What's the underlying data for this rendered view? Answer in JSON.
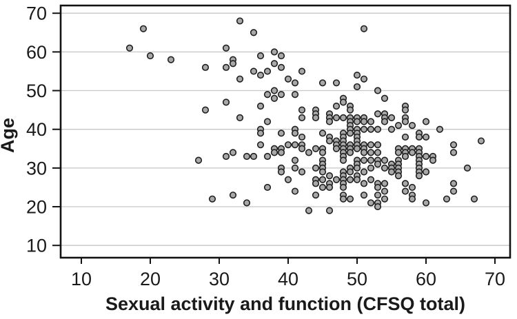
{
  "chart_data": {
    "type": "scatter",
    "title": "",
    "xlabel": "Sexual activity and function (CFSQ total)",
    "ylabel": "Age",
    "x_ticks": [
      10,
      20,
      30,
      40,
      50,
      60,
      70
    ],
    "y_ticks": [
      10,
      20,
      30,
      40,
      50,
      60,
      70
    ],
    "xlim": [
      7,
      72.2
    ],
    "ylim": [
      6.8,
      71.9
    ],
    "grid": "horizontal-only",
    "legend": "none",
    "marker": {
      "shape": "circle",
      "fill": "#a8a8a8",
      "stroke": "#1f1f1f",
      "radius": 4.3,
      "stroke_width": 1.6
    },
    "frame_color": "#121212",
    "gridline_color": "#c6c6c6",
    "points": [
      [
        17,
        61
      ],
      [
        19,
        66
      ],
      [
        20,
        59
      ],
      [
        23,
        58
      ],
      [
        27,
        32
      ],
      [
        28,
        56
      ],
      [
        28,
        45
      ],
      [
        29,
        22
      ],
      [
        31,
        61
      ],
      [
        31,
        56
      ],
      [
        31,
        47
      ],
      [
        31,
        33
      ],
      [
        32,
        58
      ],
      [
        32,
        57
      ],
      [
        32,
        34
      ],
      [
        32,
        23
      ],
      [
        33,
        68
      ],
      [
        33,
        53
      ],
      [
        33,
        43
      ],
      [
        34,
        33
      ],
      [
        34,
        21
      ],
      [
        35,
        65
      ],
      [
        35,
        55
      ],
      [
        35,
        33
      ],
      [
        36,
        59
      ],
      [
        36,
        54
      ],
      [
        36,
        46
      ],
      [
        36,
        40
      ],
      [
        36,
        39
      ],
      [
        36,
        36
      ],
      [
        37,
        55
      ],
      [
        37,
        49
      ],
      [
        37,
        42
      ],
      [
        37,
        33
      ],
      [
        37,
        25
      ],
      [
        38,
        60
      ],
      [
        38,
        57
      ],
      [
        38,
        50
      ],
      [
        38,
        48
      ],
      [
        38,
        35
      ],
      [
        38,
        34
      ],
      [
        39,
        59
      ],
      [
        39,
        56
      ],
      [
        39,
        49
      ],
      [
        39,
        39
      ],
      [
        39,
        35
      ],
      [
        39,
        34
      ],
      [
        39,
        30
      ],
      [
        39,
        29
      ],
      [
        40,
        53
      ],
      [
        40,
        36
      ],
      [
        40,
        27
      ],
      [
        41,
        52
      ],
      [
        41,
        49
      ],
      [
        41,
        40
      ],
      [
        41,
        39
      ],
      [
        41,
        36
      ],
      [
        41,
        32
      ],
      [
        41,
        30
      ],
      [
        41,
        24
      ],
      [
        42,
        55
      ],
      [
        42,
        45
      ],
      [
        42,
        43
      ],
      [
        42,
        38
      ],
      [
        42,
        36
      ],
      [
        42,
        35
      ],
      [
        42,
        29
      ],
      [
        43,
        34
      ],
      [
        43,
        19
      ],
      [
        44,
        45
      ],
      [
        44,
        44
      ],
      [
        44,
        43
      ],
      [
        44,
        35
      ],
      [
        44,
        30
      ],
      [
        44,
        27
      ],
      [
        44,
        26
      ],
      [
        44,
        23
      ],
      [
        45,
        52
      ],
      [
        45,
        39
      ],
      [
        45,
        35
      ],
      [
        45,
        34
      ],
      [
        45,
        32
      ],
      [
        45,
        31
      ],
      [
        45,
        30
      ],
      [
        45,
        29
      ],
      [
        45,
        27
      ],
      [
        45,
        25
      ],
      [
        46,
        44
      ],
      [
        46,
        43
      ],
      [
        46,
        42
      ],
      [
        46,
        38
      ],
      [
        46,
        37
      ],
      [
        46,
        28
      ],
      [
        46,
        26
      ],
      [
        46,
        25
      ],
      [
        46,
        19
      ],
      [
        47,
        52
      ],
      [
        47,
        46
      ],
      [
        47,
        43
      ],
      [
        47,
        37
      ],
      [
        47,
        36
      ],
      [
        47,
        35
      ],
      [
        47,
        27
      ],
      [
        48,
        48
      ],
      [
        48,
        47
      ],
      [
        48,
        43
      ],
      [
        48,
        39
      ],
      [
        48,
        38
      ],
      [
        48,
        37
      ],
      [
        48,
        36
      ],
      [
        48,
        35
      ],
      [
        48,
        34
      ],
      [
        48,
        33
      ],
      [
        48,
        32
      ],
      [
        48,
        29
      ],
      [
        48,
        28
      ],
      [
        48,
        27
      ],
      [
        48,
        26
      ],
      [
        48,
        25
      ],
      [
        48,
        23
      ],
      [
        48,
        22
      ],
      [
        49,
        46
      ],
      [
        49,
        45
      ],
      [
        49,
        43
      ],
      [
        49,
        42
      ],
      [
        49,
        41
      ],
      [
        49,
        40
      ],
      [
        49,
        39
      ],
      [
        49,
        36
      ],
      [
        49,
        35
      ],
      [
        49,
        34
      ],
      [
        49,
        30
      ],
      [
        49,
        29
      ],
      [
        49,
        27
      ],
      [
        49,
        22
      ],
      [
        50,
        54
      ],
      [
        50,
        51
      ],
      [
        50,
        43
      ],
      [
        50,
        42
      ],
      [
        50,
        40
      ],
      [
        50,
        39
      ],
      [
        50,
        38
      ],
      [
        50,
        37
      ],
      [
        50,
        36
      ],
      [
        50,
        35
      ],
      [
        50,
        32
      ],
      [
        50,
        31
      ],
      [
        50,
        30
      ],
      [
        50,
        28
      ],
      [
        50,
        27
      ],
      [
        51,
        66
      ],
      [
        51,
        53
      ],
      [
        51,
        43
      ],
      [
        51,
        42
      ],
      [
        51,
        40
      ],
      [
        51,
        36
      ],
      [
        51,
        35
      ],
      [
        51,
        34
      ],
      [
        51,
        32
      ],
      [
        51,
        29
      ],
      [
        51,
        26
      ],
      [
        51,
        23
      ],
      [
        52,
        42
      ],
      [
        52,
        40
      ],
      [
        52,
        36
      ],
      [
        52,
        34
      ],
      [
        52,
        32
      ],
      [
        52,
        30
      ],
      [
        52,
        27
      ],
      [
        52,
        21
      ],
      [
        53,
        50
      ],
      [
        53,
        44
      ],
      [
        53,
        40
      ],
      [
        53,
        36
      ],
      [
        53,
        34
      ],
      [
        53,
        32
      ],
      [
        53,
        31
      ],
      [
        53,
        26
      ],
      [
        53,
        25
      ],
      [
        53,
        23
      ],
      [
        53,
        21
      ],
      [
        53,
        20
      ],
      [
        54,
        48
      ],
      [
        54,
        44
      ],
      [
        54,
        43
      ],
      [
        54,
        42
      ],
      [
        54,
        32
      ],
      [
        54,
        30
      ],
      [
        54,
        26
      ],
      [
        54,
        24
      ],
      [
        54,
        22
      ],
      [
        55,
        43
      ],
      [
        55,
        40
      ],
      [
        55,
        31
      ],
      [
        55,
        30
      ],
      [
        55,
        29
      ],
      [
        56,
        41
      ],
      [
        56,
        35
      ],
      [
        56,
        34
      ],
      [
        56,
        32
      ],
      [
        56,
        31
      ],
      [
        56,
        30
      ],
      [
        56,
        29
      ],
      [
        56,
        28
      ],
      [
        57,
        46
      ],
      [
        57,
        45
      ],
      [
        57,
        43
      ],
      [
        57,
        42
      ],
      [
        57,
        38
      ],
      [
        57,
        35
      ],
      [
        57,
        34
      ],
      [
        57,
        33
      ],
      [
        57,
        26
      ],
      [
        57,
        24
      ],
      [
        58,
        41
      ],
      [
        58,
        35
      ],
      [
        58,
        34
      ],
      [
        58,
        25
      ],
      [
        58,
        23
      ],
      [
        58,
        22
      ],
      [
        59,
        39
      ],
      [
        59,
        38
      ],
      [
        59,
        35
      ],
      [
        59,
        34
      ],
      [
        59,
        33
      ],
      [
        59,
        32
      ],
      [
        59,
        31
      ],
      [
        59,
        30
      ],
      [
        59,
        29
      ],
      [
        59,
        28
      ],
      [
        60,
        42
      ],
      [
        60,
        38
      ],
      [
        60,
        33
      ],
      [
        60,
        29
      ],
      [
        60,
        21
      ],
      [
        61,
        33
      ],
      [
        61,
        32
      ],
      [
        62,
        40
      ],
      [
        63,
        22
      ],
      [
        64,
        36
      ],
      [
        64,
        34
      ],
      [
        64,
        26
      ],
      [
        64,
        24
      ],
      [
        66,
        30
      ],
      [
        67,
        22
      ],
      [
        68,
        37
      ]
    ]
  }
}
